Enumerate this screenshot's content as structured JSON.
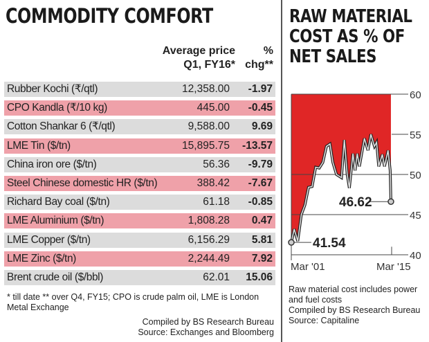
{
  "left": {
    "title": "COMMODITY COMFORT",
    "col_price": [
      "Average price",
      "Q1, FY16*"
    ],
    "col_chg": [
      "%",
      "chg**"
    ],
    "colors": {
      "gray": "#dcdcdc",
      "pink": "#efa1a9"
    },
    "rows": [
      {
        "name": "Rubber Kochi (₹/qtl)",
        "price": "12,358.00",
        "chg": "-1.97"
      },
      {
        "name": "CPO Kandla (₹/10 kg)",
        "price": "445.00",
        "chg": "-0.45"
      },
      {
        "name": "Cotton Shankar 6 (₹/qtl)",
        "price": "9,588.00",
        "chg": "9.69"
      },
      {
        "name": "LME Tin ($/tn)",
        "price": "15,895.75",
        "chg": "-13.57"
      },
      {
        "name": "China iron ore ($/tn)",
        "price": "56.36",
        "chg": "-9.79"
      },
      {
        "name": "Steel Chinese domestic HR ($/tn)",
        "price": "388.42",
        "chg": "-7.67"
      },
      {
        "name": "Richard Bay coal ($/tn)",
        "price": "61.18",
        "chg": "-0.85"
      },
      {
        "name": "LME Aluminium ($/tn)",
        "price": "1,808.28",
        "chg": "0.47"
      },
      {
        "name": "LME Copper ($/tn)",
        "price": "6,156.29",
        "chg": "5.81"
      },
      {
        "name": "LME Zinc ($/tn)",
        "price": "2,244.49",
        "chg": "7.92"
      },
      {
        "name": "Brent crude oil ($/bbl)",
        "price": "62.01",
        "chg": "15.06"
      }
    ],
    "footnote": "* till date  ** over Q4, FY15; CPO is crude palm oil, LME is London Metal Exchange",
    "credit1": "Compiled by BS Research Bureau",
    "credit2": "Source: Exchanges and Bloomberg"
  },
  "chart_data": {
    "type": "line",
    "title": "RAW MATERIAL COST AS % OF NET SALES",
    "ylim": [
      40,
      60
    ],
    "yticks": [
      40,
      45,
      50,
      55,
      60
    ],
    "xticks": [
      "Mar '01",
      "Mar '15"
    ],
    "xrange": [
      2001,
      2015
    ],
    "x": [
      2001,
      2001.4,
      2001.9,
      2002.4,
      2002.9,
      2003.4,
      2003.9,
      2004.4,
      2004.9,
      2005.4,
      2005.9,
      2006.4,
      2006.8,
      2007.3,
      2008,
      2008.4,
      2008.8,
      2009.1,
      2009.6,
      2009.9,
      2010.2,
      2010.5,
      2011.2,
      2011.7,
      2012.1,
      2012.6,
      2012.9,
      2013.2,
      2013.7,
      2014,
      2014.5,
      2014.8,
      2014.9
    ],
    "y": [
      41.54,
      43.2,
      41.7,
      45,
      46.2,
      48.4,
      48.5,
      50.9,
      50.8,
      51.5,
      53.5,
      53.8,
      51.5,
      50,
      49.6,
      54.3,
      50,
      48.3,
      52.6,
      50.5,
      52.6,
      51,
      54.5,
      53,
      55,
      53.5,
      54,
      51,
      52.5,
      51,
      53,
      50.5,
      46.62
    ],
    "labels": {
      "start": "41.54",
      "end": "46.62"
    },
    "fill_color": "#e02626",
    "note": "Raw material cost includes power and fuel costs",
    "credit1": "Compiled by BS Research Bureau",
    "credit2": "Source: Capitaline"
  }
}
